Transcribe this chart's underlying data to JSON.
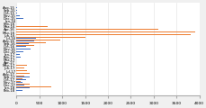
{
  "categories": [
    "Aug-15",
    "Sep-15",
    "Oct-15",
    "Nov-15",
    "Dec-15",
    "Jan-16",
    "Feb-16",
    "Mar-16",
    "Apr-16",
    "May-16",
    "Jun-16",
    "Jul-16",
    "Aug-16",
    "Sep-16",
    "Oct-16",
    "Nov-16",
    "Dec-16",
    "Jan-17",
    "Feb-17",
    "Mar-17",
    "Apr-17",
    "May-17",
    "Jun-17",
    "Jul-17",
    "Aug-17",
    "Sep-17",
    "Oct-17",
    "Nov-17",
    "Dec-17",
    "Jan-18",
    "Feb-18"
  ],
  "blue_values": [
    10,
    10,
    10,
    80,
    150,
    280,
    320,
    260,
    380,
    360,
    340,
    420,
    380,
    260,
    210,
    300,
    140,
    80,
    100,
    130,
    150,
    180,
    230,
    340,
    380,
    280,
    200,
    120,
    170,
    280,
    130
  ],
  "orange_values": [
    0,
    0,
    0,
    650,
    900,
    430,
    1350,
    680,
    3100,
    3900,
    3800,
    1500,
    950,
    650,
    380,
    230,
    270,
    120,
    90,
    950,
    330,
    230,
    170,
    230,
    280,
    170,
    120,
    90,
    280,
    750,
    200
  ],
  "blue_color": "#4472C4",
  "orange_color": "#ED7D31",
  "lightblue_color": "#9DC3E6",
  "background_color": "#F0F0F0",
  "plot_bg_color": "#FFFFFF",
  "xlim": [
    0,
    4000
  ],
  "xtick_values": [
    0,
    500,
    1000,
    1500,
    2000,
    2500,
    3000,
    3500,
    4000
  ],
  "bar_height": 0.38,
  "tick_fontsize": 3.2,
  "label_fontsize": 2.8,
  "grid_color": "#E0E0E0"
}
